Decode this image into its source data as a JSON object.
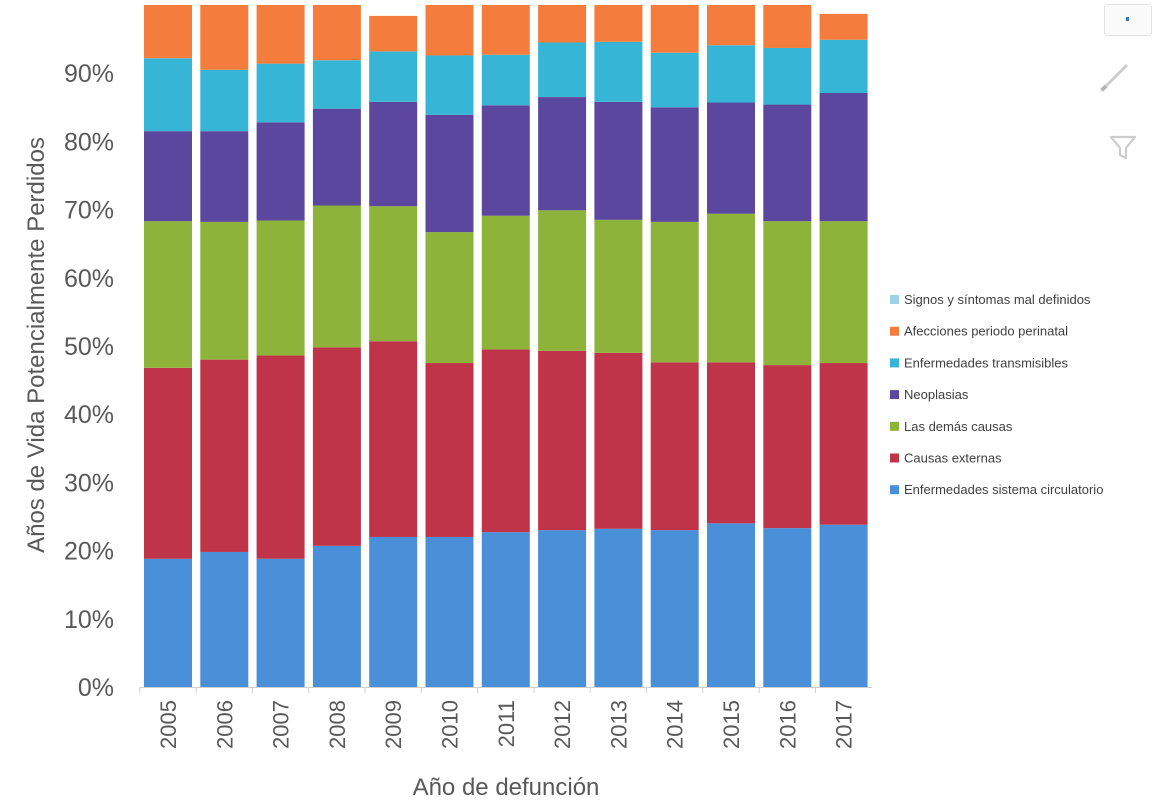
{
  "chart_data": {
    "type": "bar",
    "stacked": true,
    "title": "",
    "ylabel": "Años de Vida Potencialmente Perdidos",
    "xlabel": "Año de defunción",
    "ylim": [
      0,
      100
    ],
    "yticks": [
      "0%",
      "10%",
      "20%",
      "30%",
      "40%",
      "50%",
      "60%",
      "70%",
      "80%",
      "90%"
    ],
    "categories": [
      "2005",
      "2006",
      "2007",
      "2008",
      "2009",
      "2010",
      "2011",
      "2012",
      "2013",
      "2014",
      "2015",
      "2016",
      "2017"
    ],
    "legend_position": "right",
    "series": [
      {
        "name": "Enfermedades sistema circulatorio",
        "color": "#4a90d9",
        "values": [
          18.8,
          19.8,
          18.8,
          20.7,
          22,
          22,
          22.7,
          23,
          23.2,
          23,
          24,
          23.3,
          23.8
        ]
      },
      {
        "name": "Causas externas",
        "color": "#c0344a",
        "values": [
          28,
          28.2,
          29.8,
          29.1,
          28.7,
          25.5,
          26.8,
          26.3,
          25.8,
          24.6,
          23.6,
          23.9,
          23.7
        ]
      },
      {
        "name": "Las demás causas",
        "color": "#8db33a",
        "values": [
          21.5,
          20.2,
          19.8,
          20.8,
          19.8,
          19.2,
          19.6,
          20.6,
          19.5,
          20.6,
          21.8,
          21.1,
          20.8
        ]
      },
      {
        "name": "Neoplasias",
        "color": "#5b479e",
        "values": [
          13.2,
          13.3,
          14.4,
          14.2,
          15.3,
          17.2,
          16.2,
          16.6,
          17.3,
          16.8,
          16.3,
          17.1,
          18.8
        ]
      },
      {
        "name": "Enfermedades transmisibles",
        "color": "#37b5d6",
        "values": [
          10.7,
          9,
          8.6,
          7.1,
          7.4,
          8.7,
          7.4,
          8,
          8.8,
          8,
          8.4,
          8.3,
          7.8
        ]
      },
      {
        "name": "Afecciones periodo perinatal",
        "color": "#f47c3c",
        "values": [
          7.8,
          9.5,
          8.6,
          8.1,
          5.2,
          7.4,
          7.3,
          5.5,
          5.4,
          7,
          5.9,
          6.3,
          3.8
        ]
      },
      {
        "name": "Signos y síntomas mal definidos",
        "color": "#9ed2e8",
        "values": [
          0,
          0,
          0,
          0,
          0,
          0,
          0,
          0,
          0,
          0,
          0,
          0,
          0
        ]
      }
    ]
  },
  "toolbar": {
    "pencil_icon": "pencil-icon",
    "filter_icon": "filter-icon",
    "icon_color": "#cdcdcd"
  }
}
